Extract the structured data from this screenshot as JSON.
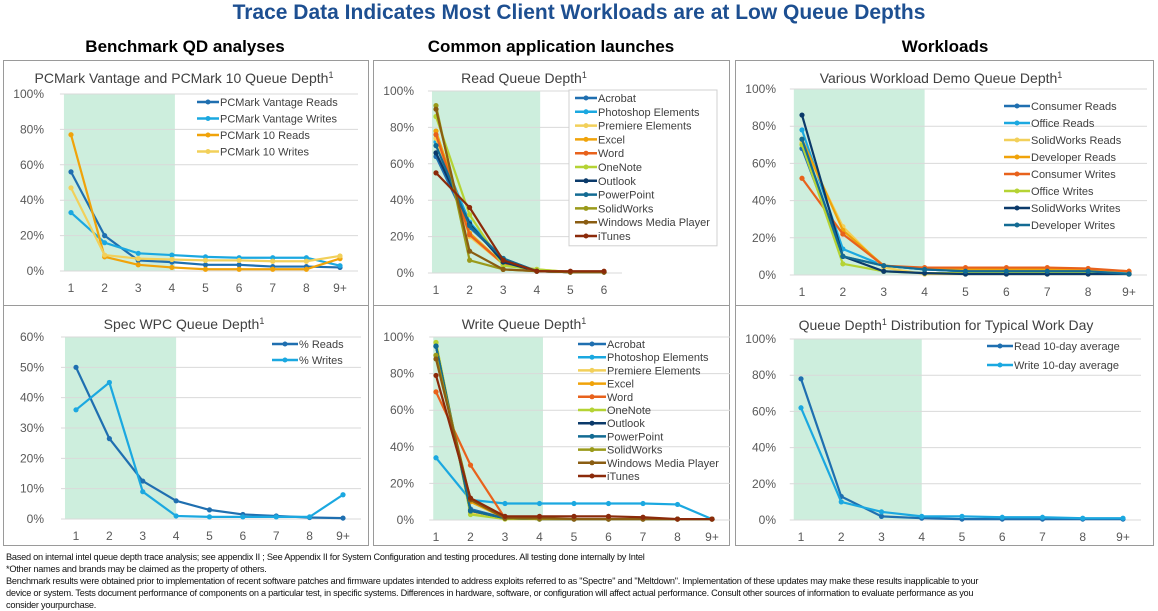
{
  "title": "Trace Data Indicates Most Client Workloads are at Low Queue Depths",
  "columns": [
    "Benchmark QD analyses",
    "Common application launches",
    "Workloads"
  ],
  "footer": [
    "Based on  internal intel queue depth trace analysis; see appendix II ; See Appendix II for System Configuration and testing procedures.  All testing done internally by Intel",
    "*Other names and brands may be claimed as the property of others.",
    "Benchmark results were obtained prior to implementation of recent software patches and firmware updates intended to address exploits referred to as \"Spectre\" and \"Meltdown\".  Implementation of these updates may make these results inapplicable to your",
    "device or system. Tests document performance of components on a particular test, in specific systems. Differences in hardware, software, or configuration will affect actual performance. Consult other sources  of information to evaluate performance as you",
    "consider yourpurchase."
  ],
  "chart_data": [
    {
      "type": "line",
      "title": "PCMark Vantage and PCMark 10 Queue Depth",
      "title_sup": "1",
      "categories": [
        "1",
        "2",
        "3",
        "4",
        "5",
        "6",
        "7",
        "8",
        "9+"
      ],
      "yticks": [
        "0%",
        "20%",
        "40%",
        "60%",
        "80%",
        "100%"
      ],
      "ylim": [
        0,
        100
      ],
      "highlight_range": [
        "1",
        "4"
      ],
      "legend_position": "top-right",
      "series": [
        {
          "name": "PCMark Vantage Reads",
          "color": "#1f6fb0",
          "values": [
            56,
            20,
            6,
            5,
            3.5,
            3.5,
            2.5,
            2.5,
            2
          ]
        },
        {
          "name": "PCMark Vantage Writes",
          "color": "#1ba8e0",
          "values": [
            33,
            16,
            10,
            9,
            8,
            7.5,
            7.5,
            7.5,
            3
          ]
        },
        {
          "name": "PCMark 10 Reads",
          "color": "#f0a30a",
          "values": [
            77,
            8,
            3.5,
            2,
            1,
            1,
            1,
            1,
            7
          ]
        },
        {
          "name": "PCMark 10 Writes",
          "color": "#f2d05a",
          "values": [
            47,
            9,
            7,
            6.5,
            6,
            6,
            5.5,
            5.5,
            8.5
          ]
        }
      ]
    },
    {
      "type": "line",
      "title": "Read Queue Depth",
      "title_sup": "1",
      "categories": [
        "1",
        "2",
        "3",
        "4",
        "5",
        "6"
      ],
      "yticks": [
        "0%",
        "20%",
        "40%",
        "60%",
        "80%",
        "100%"
      ],
      "ylim": [
        0,
        100
      ],
      "highlight_range": [
        "1",
        "4"
      ],
      "legend_position": "right",
      "series": [
        {
          "name": "Acrobat",
          "color": "#1f6fb0",
          "values": [
            64,
            25,
            8,
            1,
            0.5,
            0.5
          ]
        },
        {
          "name": "Photoshop Elements",
          "color": "#1ba8e0",
          "values": [
            72,
            28,
            7,
            1,
            0.5,
            0.5
          ]
        },
        {
          "name": "Premiere Elements",
          "color": "#f2d05a",
          "values": [
            74,
            20,
            5,
            2,
            0.5,
            0.5
          ]
        },
        {
          "name": "Excel",
          "color": "#f0a30a",
          "values": [
            78,
            22,
            5,
            1,
            0.5,
            0.5
          ]
        },
        {
          "name": "Word",
          "color": "#e8621c",
          "values": [
            76,
            21,
            5,
            1,
            0.5,
            0.5
          ]
        },
        {
          "name": "OneNote",
          "color": "#b5d334",
          "values": [
            86,
            32,
            4,
            2,
            0.5,
            0.5
          ]
        },
        {
          "name": "Outlook",
          "color": "#0b3a6a",
          "values": [
            66,
            27,
            6,
            1,
            0.5,
            0.5
          ]
        },
        {
          "name": "PowerPoint",
          "color": "#136b93",
          "values": [
            70,
            26,
            8,
            1,
            0.5,
            0.5
          ]
        },
        {
          "name": "SolidWorks",
          "color": "#9a9a1a",
          "values": [
            92,
            7,
            2,
            1,
            0.5,
            0.5
          ]
        },
        {
          "name": "Windows Media Player",
          "color": "#8a5d12",
          "values": [
            90,
            12,
            2,
            1,
            0.5,
            0.5
          ]
        },
        {
          "name": "iTunes",
          "color": "#8b2a0a",
          "values": [
            55,
            36,
            7,
            1,
            1,
            1
          ]
        }
      ]
    },
    {
      "type": "line",
      "title": "Various Workload Demo Queue Depth",
      "title_sup": "1",
      "categories": [
        "1",
        "2",
        "3",
        "4",
        "5",
        "6",
        "7",
        "8",
        "9+"
      ],
      "yticks": [
        "0%",
        "20%",
        "40%",
        "60%",
        "80%",
        "100%"
      ],
      "ylim": [
        0,
        100
      ],
      "highlight_range": [
        "1",
        "4"
      ],
      "legend_position": "right",
      "series": [
        {
          "name": "Consumer Reads",
          "color": "#1f6fb0",
          "values": [
            68,
            10,
            5,
            3,
            2,
            2,
            2,
            2,
            1
          ]
        },
        {
          "name": "Office Reads",
          "color": "#1ba8e0",
          "values": [
            78,
            14,
            5,
            3,
            2,
            2,
            2,
            2,
            1
          ]
        },
        {
          "name": "SolidWorks Reads",
          "color": "#f2d05a",
          "values": [
            71,
            26,
            4,
            0.5,
            0.5,
            0.5,
            0.5,
            0.5,
            0.5
          ]
        },
        {
          "name": "Developer Reads",
          "color": "#f0a30a",
          "values": [
            73,
            24,
            5,
            3.5,
            3,
            3,
            3,
            3,
            2
          ]
        },
        {
          "name": "Consumer Writes",
          "color": "#e8621c",
          "values": [
            52,
            22,
            5,
            4,
            4,
            4,
            4,
            3.5,
            2
          ]
        },
        {
          "name": "Office Writes",
          "color": "#b5d334",
          "values": [
            70,
            6,
            2,
            1,
            1,
            1,
            1,
            1,
            0.5
          ]
        },
        {
          "name": "SolidWorks Writes",
          "color": "#0b3a6a",
          "values": [
            86,
            10,
            2,
            1,
            0.5,
            0.5,
            0.5,
            0.5,
            0.5
          ]
        },
        {
          "name": "Developer Writes",
          "color": "#136b93",
          "values": [
            73,
            10,
            5,
            3,
            2,
            2,
            2,
            2,
            0.5
          ]
        }
      ]
    },
    {
      "type": "line",
      "title": "Spec WPC Queue Depth",
      "title_sup": "1",
      "categories": [
        "1",
        "2",
        "3",
        "4",
        "5",
        "6",
        "7",
        "8",
        "9+"
      ],
      "yticks": [
        "0%",
        "10%",
        "20%",
        "30%",
        "40%",
        "50%",
        "60%"
      ],
      "ylim": [
        0,
        60
      ],
      "highlight_range": [
        "1",
        "4"
      ],
      "legend_position": "top-right",
      "series": [
        {
          "name": "% Reads",
          "color": "#1f6fb0",
          "values": [
            50,
            26.5,
            12.5,
            6,
            3,
            1.5,
            1,
            0.5,
            0.3
          ]
        },
        {
          "name": "% Writes",
          "color": "#1ba8e0",
          "values": [
            36,
            45,
            9,
            1,
            0.7,
            0.7,
            0.7,
            0.7,
            8
          ]
        }
      ]
    },
    {
      "type": "line",
      "title": "Write Queue Depth",
      "title_sup": "1",
      "categories": [
        "1",
        "2",
        "3",
        "4",
        "5",
        "6",
        "7",
        "8",
        "9+"
      ],
      "yticks": [
        "0%",
        "20%",
        "40%",
        "60%",
        "80%",
        "100%"
      ],
      "ylim": [
        0,
        100
      ],
      "highlight_range": [
        "1",
        "4"
      ],
      "legend_position": "right",
      "series": [
        {
          "name": "Acrobat",
          "color": "#1f6fb0",
          "values": [
            95,
            6,
            1,
            0.5,
            0.5,
            0.5,
            0.5,
            0.5,
            0.5
          ]
        },
        {
          "name": "Photoshop Elements",
          "color": "#1ba8e0",
          "values": [
            34,
            11,
            9,
            9,
            9,
            9,
            9,
            8.5,
            0.5
          ]
        },
        {
          "name": "Premiere Elements",
          "color": "#f2d05a",
          "values": [
            97,
            4,
            0.5,
            0.5,
            0.5,
            0.5,
            0.5,
            0.5,
            0.5
          ]
        },
        {
          "name": "Excel",
          "color": "#f0a30a",
          "values": [
            90,
            10,
            1,
            0.5,
            0.5,
            0.5,
            0.5,
            0.5,
            0.5
          ]
        },
        {
          "name": "Word",
          "color": "#e8621c",
          "values": [
            70,
            30,
            1,
            0.5,
            0.5,
            0.5,
            0.5,
            0.5,
            0.5
          ]
        },
        {
          "name": "OneNote",
          "color": "#b5d334",
          "values": [
            97,
            3,
            0.5,
            0.5,
            0.5,
            0.5,
            0.5,
            0.5,
            0.5
          ]
        },
        {
          "name": "Outlook",
          "color": "#0b3a6a",
          "values": [
            95,
            5,
            1,
            0.5,
            0.5,
            0.5,
            0.5,
            0.5,
            0.5
          ]
        },
        {
          "name": "PowerPoint",
          "color": "#136b93",
          "values": [
            95,
            5,
            1,
            0.5,
            0.5,
            0.5,
            0.5,
            0.5,
            0.5
          ]
        },
        {
          "name": "SolidWorks",
          "color": "#9a9a1a",
          "values": [
            90,
            11,
            1,
            0.5,
            0.5,
            0.5,
            0.5,
            0.5,
            0.5
          ]
        },
        {
          "name": "Windows Media Player",
          "color": "#8a5d12",
          "values": [
            88,
            11,
            1,
            1,
            0.5,
            0.5,
            0.5,
            0.5,
            0.5
          ]
        },
        {
          "name": "iTunes",
          "color": "#8b2a0a",
          "values": [
            79,
            12,
            2,
            2,
            2,
            2,
            1.5,
            0.5,
            0.5
          ]
        }
      ]
    },
    {
      "type": "line",
      "title": "Queue Depth",
      "title_sup": "1",
      "title_rest": " Distribution for Typical Work Day",
      "categories": [
        "1",
        "2",
        "3",
        "4",
        "5",
        "6",
        "7",
        "8",
        "9+"
      ],
      "yticks": [
        "0%",
        "20%",
        "40%",
        "60%",
        "80%",
        "100%"
      ],
      "ylim": [
        0,
        100
      ],
      "highlight_range": [
        "1",
        "4"
      ],
      "legend_position": "top-right",
      "series": [
        {
          "name": "Read 10-day average",
          "color": "#1f6fb0",
          "values": [
            78,
            13,
            2,
            1,
            0.5,
            0.5,
            0.5,
            0.5,
            0.5
          ]
        },
        {
          "name": "Write 10-day average",
          "color": "#1ba8e0",
          "values": [
            62,
            10,
            4.5,
            2,
            2,
            1.5,
            1.5,
            1,
            1
          ]
        }
      ]
    }
  ]
}
